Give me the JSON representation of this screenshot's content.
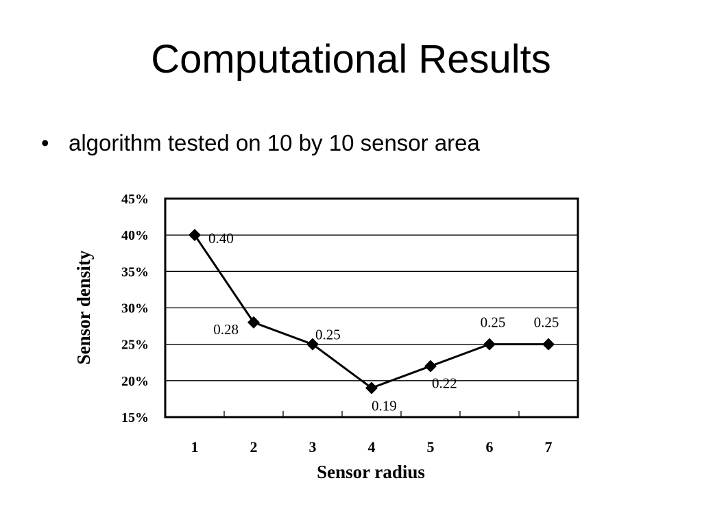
{
  "slide": {
    "title": "Computational Results",
    "bullet_marker": "•",
    "bullet_text": "algorithm tested on 10 by 10 sensor area"
  },
  "chart_data": {
    "type": "line",
    "x": [
      1,
      2,
      3,
      4,
      5,
      6,
      7
    ],
    "categories": [
      "1",
      "2",
      "3",
      "4",
      "5",
      "6",
      "7"
    ],
    "series": [
      {
        "values": [
          0.4,
          0.28,
          0.25,
          0.19,
          0.22,
          0.25,
          0.25
        ],
        "data_labels": [
          "0.40",
          "0.28",
          "0.25",
          "0.19",
          "0.22",
          "0.25",
          "0.25"
        ],
        "marker": "diamond",
        "color": "#000000"
      }
    ],
    "xlabel": "Sensor radius",
    "ylabel": "Sensor density",
    "ylim": [
      0.15,
      0.45
    ],
    "yticks": [
      0.45,
      0.4,
      0.35,
      0.3,
      0.25,
      0.2,
      0.15
    ],
    "ytick_labels": [
      "45%",
      "40%",
      "35%",
      "30%",
      "25%",
      "20%",
      "15%"
    ],
    "grid": "horizontal",
    "legend": "none"
  }
}
